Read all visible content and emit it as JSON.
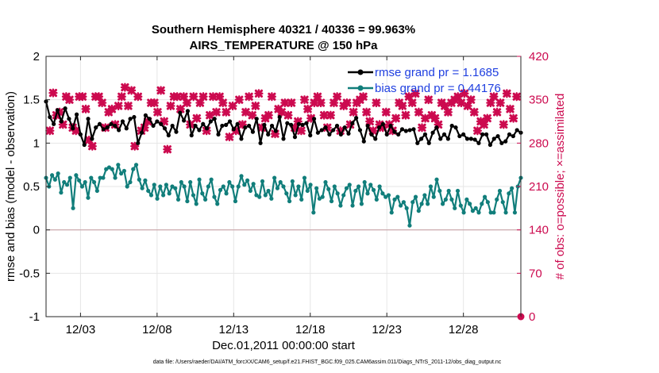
{
  "chart_data": {
    "type": "line",
    "title_line1": "Southern Hemisphere 40321 / 40336 = 99.963%",
    "title_line2": "AIRS_TEMPERATURE @ 150 hPa",
    "xlabel": "Dec.01,2011 00:00:00 start",
    "ylabel_left": "rmse and bias (model - observation)",
    "ylabel_right": "# of obs: o=possible; ×=assimilated",
    "xlim": [
      0,
      124
    ],
    "ylim_left": [
      -1,
      2
    ],
    "ylim_right": [
      0,
      420
    ],
    "x_ticks": [
      {
        "x": 9,
        "label": "12/03"
      },
      {
        "x": 29,
        "label": "12/08"
      },
      {
        "x": 49,
        "label": "12/13"
      },
      {
        "x": 69,
        "label": "12/18"
      },
      {
        "x": 89,
        "label": "12/23"
      },
      {
        "x": 109,
        "label": "12/28"
      }
    ],
    "y_ticks_left": [
      "-1",
      "-0.5",
      "0",
      "0.5",
      "1",
      "1.5",
      "2"
    ],
    "y_ticks_right": [
      "0",
      "70",
      "140",
      "210",
      "280",
      "350",
      "420"
    ],
    "zero_line": 0,
    "series": [
      {
        "name": "rmse grand pr = 1.1685",
        "color": "#000000",
        "marker": "circle",
        "values": [
          1.48,
          1.3,
          1.22,
          1.38,
          1.25,
          1.4,
          1.28,
          1.17,
          1.33,
          1.1,
          0.98,
          1.28,
          1.05,
          1.18,
          1.22,
          1.16,
          1.18,
          1.22,
          1.2,
          1.15,
          1.25,
          1.17,
          1.28,
          1.3,
          1.0,
          1.12,
          1.32,
          1.28,
          1.2,
          1.25,
          1.22,
          1.17,
          1.09,
          1.2,
          1.13,
          1.35,
          1.26,
          1.37,
          1.09,
          1.2,
          1.15,
          1.22,
          1.17,
          1.25,
          1.28,
          1.1,
          1.2,
          1.21,
          1.25,
          1.16,
          1.22,
          1.05,
          1.18,
          1.2,
          1.13,
          1.28,
          1.0,
          1.21,
          1.1,
          1.2,
          1.14,
          1.3,
          1.05,
          1.23,
          1.21,
          1.07,
          1.22,
          1.21,
          1.23,
          1.09,
          1.28,
          1.12,
          1.15,
          1.18,
          1.1,
          1.15,
          1.2,
          1.1,
          1.18,
          1.11,
          1.23,
          1.29,
          1.15,
          1.02,
          1.2,
          1.1,
          1.05,
          1.18,
          1.22,
          1.1,
          1.2,
          1.13,
          1.1,
          1.16,
          1.14,
          1.15,
          1.16,
          1.0,
          1.05,
          1.1,
          1.0,
          1.12,
          1.18,
          1.05,
          1.1,
          1.05,
          1.2,
          1.18,
          1.08,
          1.1,
          1.05,
          1.05,
          1.04,
          1.0,
          1.1,
          1.1,
          0.98,
          1.05,
          1.08,
          1.0,
          1.02,
          1.1,
          1.08,
          1.15,
          1.12
        ]
      },
      {
        "name": "bias grand pr = 0.44176",
        "color": "#117e7b",
        "marker": "circle",
        "values": [
          0.6,
          0.5,
          0.63,
          0.58,
          0.65,
          0.43,
          0.55,
          0.52,
          0.6,
          0.25,
          0.63,
          0.57,
          0.5,
          0.55,
          0.37,
          0.6,
          0.55,
          0.45,
          0.6,
          0.6,
          0.7,
          0.72,
          0.7,
          0.6,
          0.75,
          0.65,
          0.68,
          0.5,
          0.55,
          0.7,
          0.75,
          0.58,
          0.48,
          0.57,
          0.45,
          0.4,
          0.52,
          0.36,
          0.5,
          0.4,
          0.52,
          0.42,
          0.5,
          0.48,
          0.35,
          0.55,
          0.5,
          0.33,
          0.55,
          0.4,
          0.3,
          0.58,
          0.42,
          0.35,
          0.5,
          0.58,
          0.38,
          0.3,
          0.46,
          0.5,
          0.42,
          0.55,
          0.5,
          0.33,
          0.5,
          0.62,
          0.52,
          0.57,
          0.45,
          0.53,
          0.4,
          0.38,
          0.56,
          0.4,
          0.45,
          0.36,
          0.6,
          0.48,
          0.55,
          0.5,
          0.42,
          0.33,
          0.56,
          0.4,
          0.5,
          0.35,
          0.6,
          0.45,
          0.52,
          0.2,
          0.48,
          0.36,
          0.38,
          0.55,
          0.47,
          0.33,
          0.5,
          0.42,
          0.28,
          0.4,
          0.48,
          0.52,
          0.28,
          0.45,
          0.5,
          0.3,
          0.55,
          0.42,
          0.52,
          0.46,
          0.35,
          0.5,
          0.42,
          0.38,
          0.4,
          0.2,
          0.35,
          0.38,
          0.28,
          0.32,
          0.25,
          0.05,
          0.32,
          0.38,
          0.22,
          0.3,
          0.4,
          0.3,
          0.5,
          0.38,
          0.58,
          0.45,
          0.3,
          0.35,
          0.45,
          0.35,
          0.25,
          0.45,
          0.28,
          0.2,
          0.35,
          0.3,
          0.22,
          0.25,
          0.2,
          0.3,
          0.38,
          0.32,
          0.2,
          0.2,
          0.35,
          0.45,
          0.32,
          0.2,
          0.42,
          0.48,
          0.2,
          0.5,
          0.6
        ]
      }
    ],
    "obs_possible": {
      "name": "possible",
      "color": "#cc0a4f",
      "marker": "circle",
      "values": []
    },
    "obs_assimilated": {
      "name": "assimilated",
      "color": "#cc0a4f",
      "marker": "x",
      "values": [
        300,
        361,
        325,
        330,
        310,
        355,
        350,
        305,
        300,
        355,
        355,
        335,
        285,
        275,
        355,
        355,
        345,
        305,
        330,
        335,
        310,
        340,
        355,
        370,
        340,
        365,
        275,
        355,
        300,
        305,
        315,
        345,
        345,
        330,
        365,
        315,
        270,
        340,
        355,
        355,
        335,
        355,
        345,
        310,
        355,
        320,
        345,
        355,
        300,
        325,
        355,
        330,
        355,
        345,
        330,
        290,
        340,
        300,
        350,
        310,
        330,
        355,
        325,
        340,
        360,
        305,
        320,
        325,
        355,
        295,
        335,
        330,
        345,
        325,
        345,
        305,
        315,
        300,
        350,
        335,
        320,
        345,
        355,
        345,
        325,
        305,
        325,
        345,
        355,
        300,
        340,
        345,
        310,
        330,
        345,
        350,
        355,
        330,
        315,
        300,
        345,
        310,
        305,
        330,
        310,
        300,
        320,
        345,
        340,
        325,
        355,
        345,
        360,
        330,
        305,
        320,
        350,
        325,
        320,
        310,
        345,
        340,
        330,
        345,
        350,
        355,
        345,
        360,
        340,
        350,
        330,
        300,
        315,
        310,
        320,
        345,
        355,
        330,
        345,
        310,
        360,
        335,
        320,
        355
      ]
    },
    "legend": [
      {
        "label": "rmse grand pr = 1.1685",
        "color": "#000000"
      },
      {
        "label": "bias grand pr = 0.44176",
        "color": "#117e7b"
      }
    ],
    "footnote": "data file: /Users/raeder/DAI/ATM_forcXX/CAM6_setup/f.e21.FHIST_BGC.f09_025.CAM6assim.011/Diags_NTrS_2011-12/obs_diag_output.nc",
    "outlier_possible": [
      {
        "x": 124,
        "y": 0
      }
    ]
  }
}
